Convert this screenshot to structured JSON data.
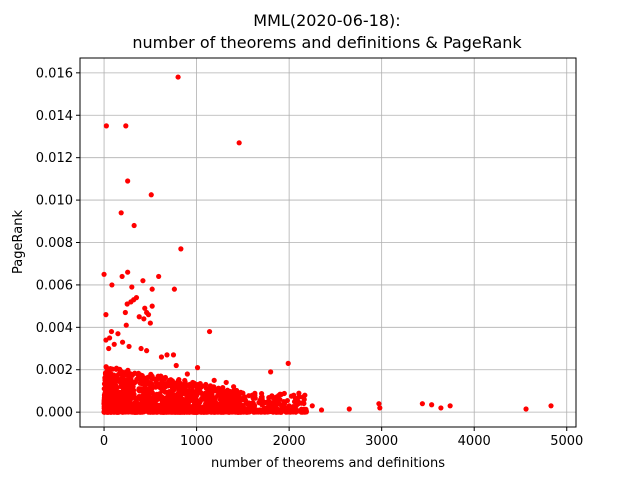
{
  "chart_data": {
    "type": "scatter",
    "title_line1": "MML(2020-06-18):",
    "title_line2": "number of theorems and definitions & PageRank",
    "xlabel": "number of theorems and definitions",
    "ylabel": "PageRank",
    "xlim": [
      -260,
      5100
    ],
    "ylim": [
      -0.0007,
      0.0167
    ],
    "xticks": [
      0,
      1000,
      2000,
      3000,
      4000,
      5000
    ],
    "xtick_labels": [
      "0",
      "1000",
      "2000",
      "3000",
      "4000",
      "5000"
    ],
    "yticks": [
      0.0,
      0.002,
      0.004,
      0.006,
      0.008,
      0.01,
      0.012,
      0.014,
      0.016
    ],
    "ytick_labels": [
      "0.000",
      "0.002",
      "0.004",
      "0.006",
      "0.008",
      "0.010",
      "0.012",
      "0.014",
      "0.016"
    ],
    "grid": true,
    "marker_color": "#ff0000",
    "points": [
      [
        800,
        0.0158
      ],
      [
        25,
        0.0135
      ],
      [
        235,
        0.0135
      ],
      [
        1460,
        0.0127
      ],
      [
        255,
        0.0109
      ],
      [
        510,
        0.01025
      ],
      [
        185,
        0.0094
      ],
      [
        325,
        0.0088
      ],
      [
        830,
        0.0077
      ],
      [
        0,
        0.0065
      ],
      [
        255,
        0.0066
      ],
      [
        590,
        0.0064
      ],
      [
        195,
        0.0064
      ],
      [
        420,
        0.0062
      ],
      [
        300,
        0.0059
      ],
      [
        85,
        0.006
      ],
      [
        760,
        0.0058
      ],
      [
        520,
        0.0058
      ],
      [
        20,
        0.0046
      ],
      [
        350,
        0.0054
      ],
      [
        320,
        0.0053
      ],
      [
        290,
        0.0052
      ],
      [
        250,
        0.0051
      ],
      [
        520,
        0.005
      ],
      [
        440,
        0.0049
      ],
      [
        230,
        0.0047
      ],
      [
        480,
        0.0046
      ],
      [
        460,
        0.0047
      ],
      [
        430,
        0.0044
      ],
      [
        380,
        0.0045
      ],
      [
        500,
        0.0042
      ],
      [
        240,
        0.0041
      ],
      [
        1140,
        0.0038
      ],
      [
        150,
        0.0037
      ],
      [
        80,
        0.0038
      ],
      [
        60,
        0.0035
      ],
      [
        20,
        0.0034
      ],
      [
        200,
        0.0033
      ],
      [
        270,
        0.0031
      ],
      [
        110,
        0.0032
      ],
      [
        50,
        0.003
      ],
      [
        400,
        0.003
      ],
      [
        460,
        0.0029
      ],
      [
        680,
        0.0027
      ],
      [
        750,
        0.0027
      ],
      [
        620,
        0.0026
      ],
      [
        1990,
        0.0023
      ],
      [
        1010,
        0.0021
      ],
      [
        1800,
        0.0019
      ],
      [
        780,
        0.0022
      ],
      [
        900,
        0.0018
      ],
      [
        1190,
        0.0015
      ],
      [
        1320,
        0.0014
      ],
      [
        1010,
        0.0013
      ],
      [
        1050,
        0.0012
      ],
      [
        1400,
        0.0012
      ],
      [
        1280,
        0.001
      ],
      [
        1500,
        0.0009
      ],
      [
        1600,
        0.0008
      ],
      [
        1700,
        0.0007
      ],
      [
        1820,
        0.0007
      ],
      [
        1900,
        0.0006
      ],
      [
        2050,
        0.0008
      ],
      [
        2170,
        0.0008
      ],
      [
        1950,
        0.0004
      ],
      [
        2000,
        0.0003
      ],
      [
        2100,
        0.0004
      ],
      [
        2250,
        0.0003
      ],
      [
        2350,
        0.0001
      ],
      [
        2650,
        0.00015
      ],
      [
        2970,
        0.0004
      ],
      [
        2980,
        0.0002
      ],
      [
        3440,
        0.0004
      ],
      [
        3540,
        0.00035
      ],
      [
        3640,
        0.0002
      ],
      [
        3740,
        0.0003
      ],
      [
        4560,
        0.00015
      ],
      [
        4830,
        0.0003
      ]
    ],
    "dense_region": {
      "x_min": 0,
      "x_max": 1500,
      "y_min": 0.0,
      "y_max": 0.0022,
      "x_max_sparse": 2200,
      "y_max_sparse": 0.0009
    }
  }
}
